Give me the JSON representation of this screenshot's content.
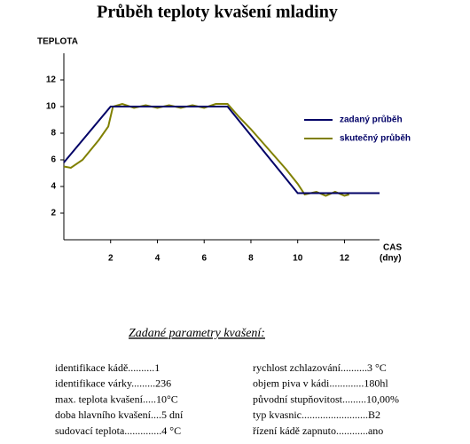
{
  "chart_data": {
    "type": "line",
    "title": "Průběh teploty kvašení mladiny",
    "y_label": "TEPLOTA",
    "x_label": "CAS",
    "x_unit": "(dny)",
    "xlim": [
      0,
      13.5
    ],
    "ylim": [
      0,
      14
    ],
    "xticks": [
      2,
      4,
      6,
      8,
      10,
      12
    ],
    "yticks": [
      2,
      4,
      6,
      8,
      10,
      12
    ],
    "series": [
      {
        "name": "zadaný průběh",
        "color": "#000066",
        "x": [
          0,
          2,
          7,
          10,
          13.5
        ],
        "values": [
          5.8,
          10,
          10,
          3.5,
          3.5
        ]
      },
      {
        "name": "skutečný průběh",
        "color": "#808000",
        "x": [
          0,
          0.3,
          0.8,
          1.5,
          1.9,
          2.1,
          2.5,
          3,
          3.5,
          4,
          4.5,
          5,
          5.5,
          6,
          6.5,
          7,
          7.5,
          8,
          8.5,
          9,
          9.5,
          10,
          10.3,
          10.8,
          11.2,
          11.6,
          12,
          12.2
        ],
        "values": [
          5.5,
          5.4,
          6,
          7.5,
          8.5,
          10,
          10.2,
          9.9,
          10.1,
          9.9,
          10.1,
          9.9,
          10.1,
          9.9,
          10.2,
          10.2,
          9.2,
          8.3,
          7.3,
          6.3,
          5.3,
          4.2,
          3.4,
          3.6,
          3.3,
          3.6,
          3.3,
          3.4
        ]
      }
    ]
  },
  "parameters": {
    "title": "Zadané parametry kvašení:",
    "rows": [
      [
        "identifikace kádě..........1",
        "rychlost zchlazování..........3 °C"
      ],
      [
        "identifikace várky.........236",
        "objem piva v kádi.............180hl"
      ],
      [
        "max. teplota kvašení.....10°C",
        "původní stupňovitost.........10,00%"
      ],
      [
        "doba hlavního kvašení....5 dní",
        "typ kvasnic.........................B2"
      ],
      [
        "sudovací teplota..............4 °C",
        "řízení kádě zapnuto............ano"
      ]
    ]
  }
}
